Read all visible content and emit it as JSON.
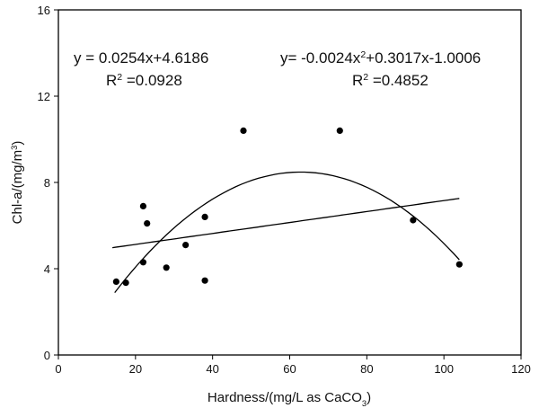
{
  "chart_data": {
    "type": "scatter",
    "xlabel_parts": [
      "Hardness/(mg/L as CaCO",
      "3",
      ")"
    ],
    "ylabel_parts": [
      "Chl-a/(mg/m",
      "3",
      ")"
    ],
    "xlim": [
      0,
      120
    ],
    "ylim": [
      0,
      16
    ],
    "xticks": [
      0,
      20,
      40,
      60,
      80,
      100,
      120
    ],
    "yticks": [
      0,
      4,
      8,
      12,
      16
    ],
    "grid": false,
    "points": [
      {
        "x": 15,
        "y": 3.4
      },
      {
        "x": 17.5,
        "y": 3.35
      },
      {
        "x": 22,
        "y": 6.9
      },
      {
        "x": 22,
        "y": 4.3
      },
      {
        "x": 23,
        "y": 6.1
      },
      {
        "x": 28,
        "y": 4.05
      },
      {
        "x": 33,
        "y": 5.1
      },
      {
        "x": 38,
        "y": 6.4
      },
      {
        "x": 38,
        "y": 3.45
      },
      {
        "x": 48,
        "y": 10.4
      },
      {
        "x": 73,
        "y": 10.4
      },
      {
        "x": 92,
        "y": 6.25
      },
      {
        "x": 104,
        "y": 4.2
      }
    ],
    "fits": [
      {
        "kind": "linear",
        "coef": [
          4.6186,
          0.0254
        ],
        "x_range": [
          14,
          104
        ],
        "equation_parts": [
          "y = 0.0254x+4.6186"
        ],
        "r2_parts": [
          "R",
          "2",
          " =0.0928"
        ]
      },
      {
        "kind": "quadratic",
        "coef": [
          -1.0006,
          0.3017,
          -0.0024
        ],
        "x_range": [
          14.6,
          104
        ],
        "equation_parts": [
          "y= -0.0024x",
          "2",
          "+0.3017x-1.0006"
        ],
        "r2_parts": [
          "R",
          "2",
          " =0.4852"
        ]
      }
    ]
  }
}
